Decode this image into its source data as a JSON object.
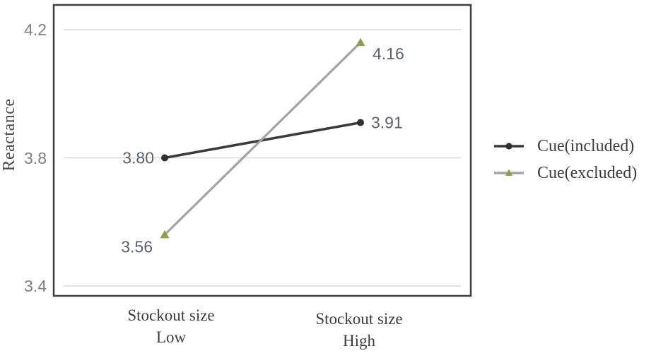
{
  "chart_data": {
    "type": "line",
    "title": "",
    "ylabel": "Reactance",
    "xlabel": "",
    "categories": [
      "Stockout size Low",
      "Stockout size High"
    ],
    "categories_lines": [
      [
        "Stockout size",
        "Low"
      ],
      [
        "Stockout size",
        "High"
      ]
    ],
    "y_ticks": [
      4.2,
      3.8,
      3.4
    ],
    "y_tick_labels": [
      "4.2",
      "3.8",
      "3.4"
    ],
    "ylim": [
      3.37,
      4.29
    ],
    "grid": "horizontal-gridlines",
    "legend_position": "right",
    "series": [
      {
        "name": "Cue(included)",
        "values": [
          3.8,
          3.91
        ],
        "point_labels": [
          "3.80",
          "3.91"
        ],
        "line_color": "#3a3a3a",
        "marker": "circle",
        "marker_color": "#2f2f2f"
      },
      {
        "name": "Cue(excluded)",
        "values": [
          3.56,
          4.16
        ],
        "point_labels": [
          "3.56",
          "4.16"
        ],
        "line_color": "#a3a3a3",
        "marker": "triangle",
        "marker_color": "#8f9e4d"
      }
    ]
  },
  "colors": {
    "plot_border": "#3f3f3f",
    "gridline": "#dedede",
    "tick_text": "#7e7e7e",
    "data_label_text": "#5a6270",
    "category_text": "#3e3e3e",
    "legend_text": "#3e3e3e",
    "axis_title_text": "#4a4a4a"
  }
}
